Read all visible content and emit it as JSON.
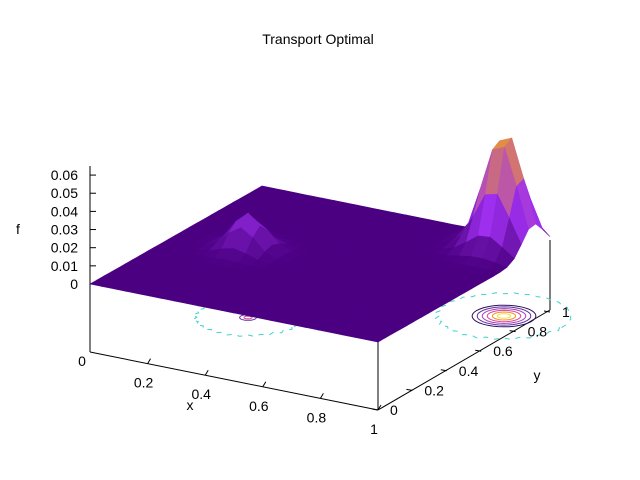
{
  "chart_data": {
    "type": "surface",
    "title": "Transport Optimal",
    "xlabel": "x",
    "ylabel": "y",
    "zlabel": "f",
    "xlim": [
      0,
      1
    ],
    "ylim": [
      0,
      1
    ],
    "zlim": [
      0,
      0.06
    ],
    "x_ticks": [
      "0.2",
      "0.4",
      "0.6",
      "0.8",
      "1"
    ],
    "y_ticks": [
      "0",
      "0.2",
      "0.4",
      "0.6",
      "0.8",
      "1"
    ],
    "z_ticks": [
      "0",
      "0.01",
      "0.02",
      "0.03",
      "0.04",
      "0.05",
      "0.06"
    ],
    "corner_tick": "0",
    "surface_base_value": 0,
    "peaks": [
      {
        "x": 0.25,
        "y": 0.5,
        "height": 0.02
      },
      {
        "x": 0.9,
        "y": 0.9,
        "height": 0.065
      }
    ],
    "contours_on_base": true,
    "colors": {
      "surface_low": "#4b0082",
      "surface_mid": "#a030f0",
      "surface_high": "#f0a020",
      "contour_outer": "#40d0d0"
    }
  }
}
